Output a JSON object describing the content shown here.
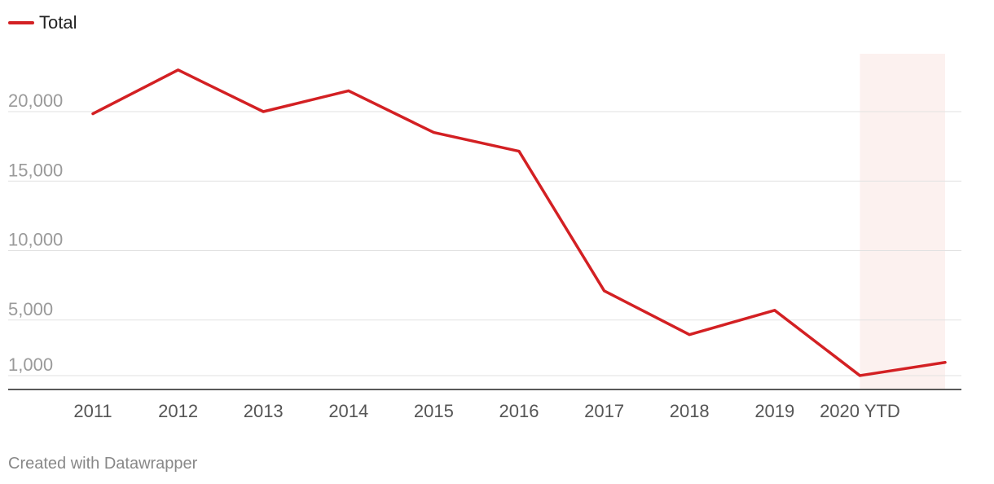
{
  "chart_data": {
    "type": "line",
    "categories": [
      "2011",
      "2012",
      "2013",
      "2014",
      "2015",
      "2016",
      "2017",
      "2018",
      "2019",
      "2020 YTD",
      ""
    ],
    "series": [
      {
        "name": "Total",
        "color": "#d32023",
        "values": [
          19850,
          23000,
          20000,
          21500,
          18500,
          17150,
          7100,
          3950,
          5700,
          1000,
          1950
        ]
      }
    ],
    "y_ticks": [
      {
        "value": 1000,
        "label": "1,000"
      },
      {
        "value": 5000,
        "label": "5,000"
      },
      {
        "value": 10000,
        "label": "10,000"
      },
      {
        "value": 15000,
        "label": "15,000"
      },
      {
        "value": 20000,
        "label": "20,000"
      }
    ],
    "ylim": [
      0,
      24000
    ],
    "grid": true,
    "legend_position": "top-left",
    "highlight_range": {
      "from": "2020 YTD",
      "to_index": 10,
      "color": "#fcf1ef"
    }
  },
  "legend": {
    "label": "Total",
    "color": "#d32023"
  },
  "footer": {
    "credit": "Created with Datawrapper"
  }
}
